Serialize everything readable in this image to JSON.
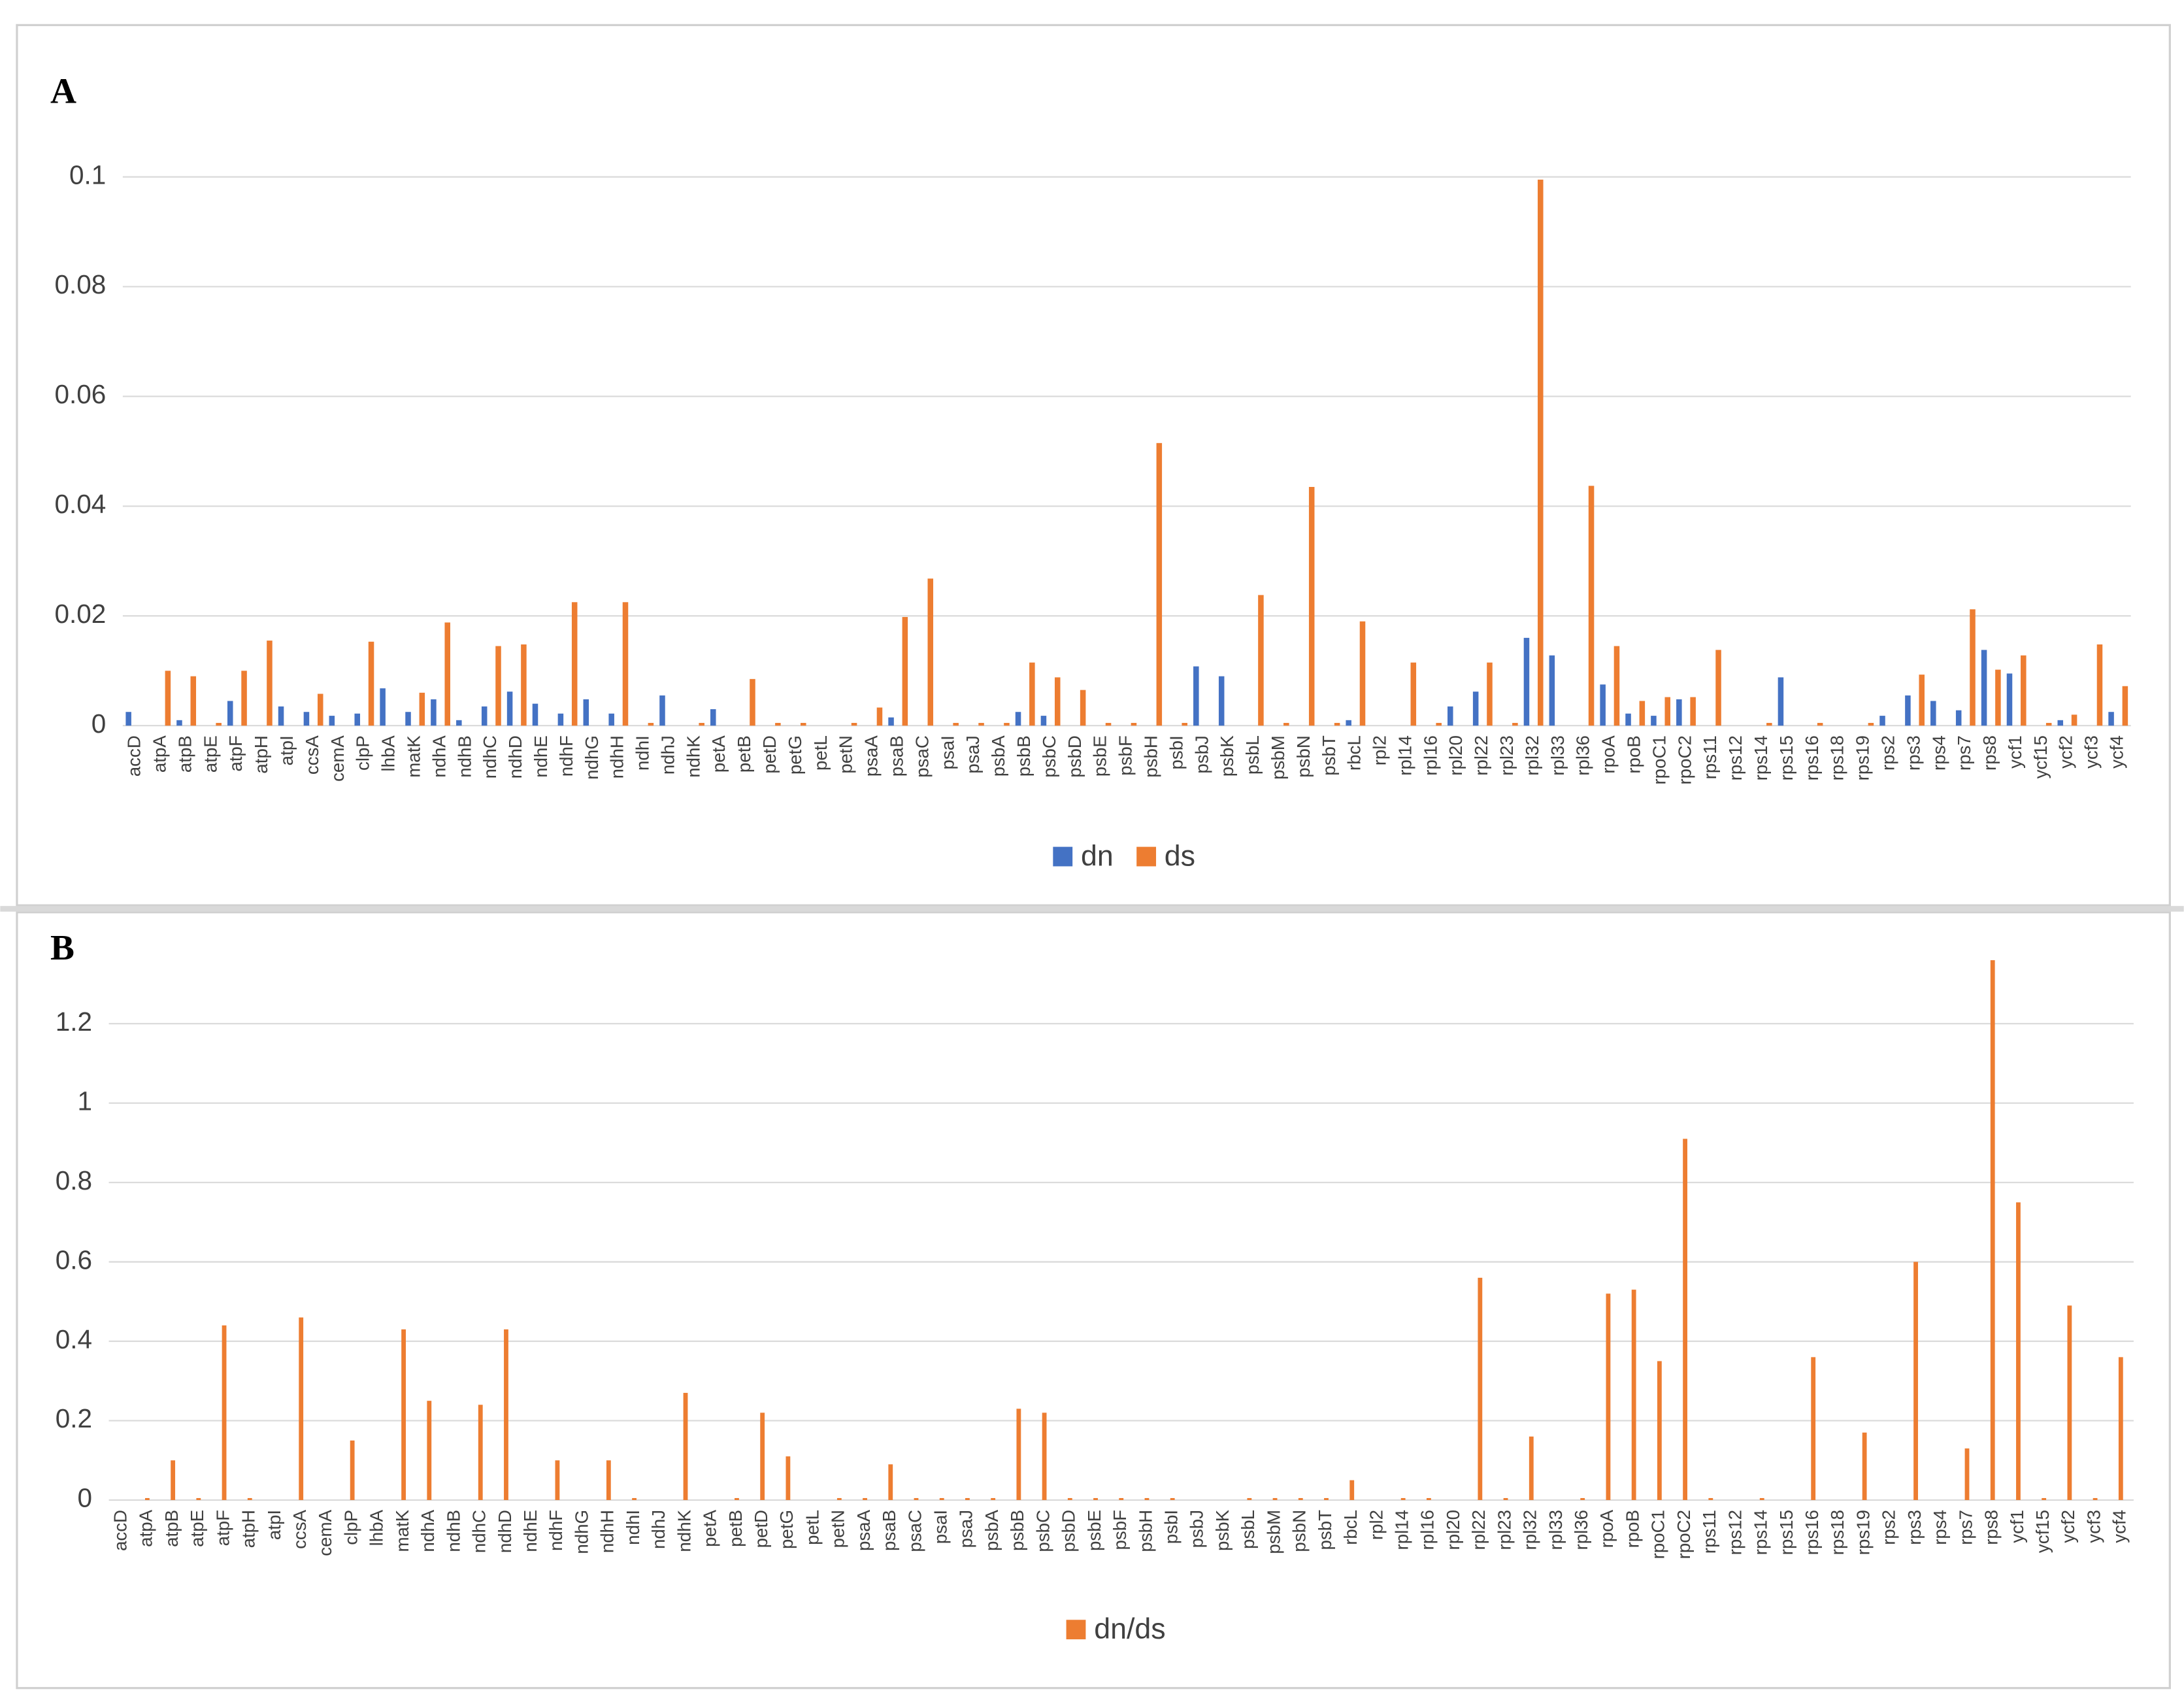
{
  "chart_data": [
    {
      "type": "bar",
      "panel_label": "A",
      "categories": [
        "accD",
        "atpA",
        "atpB",
        "atpE",
        "atpF",
        "atpH",
        "atpI",
        "ccsA",
        "cemA",
        "clpP",
        "lhbA",
        "matK",
        "ndhA",
        "ndhB",
        "ndhC",
        "ndhD",
        "ndhE",
        "ndhF",
        "ndhG",
        "ndhH",
        "ndhI",
        "ndhJ",
        "ndhK",
        "petA",
        "petB",
        "petD",
        "petG",
        "petL",
        "petN",
        "psaA",
        "psaB",
        "psaC",
        "psaI",
        "psaJ",
        "psbA",
        "psbB",
        "psbC",
        "psbD",
        "psbE",
        "psbF",
        "psbH",
        "psbI",
        "psbJ",
        "psbK",
        "psbL",
        "psbM",
        "psbN",
        "psbT",
        "rbcL",
        "rpl2",
        "rpl14",
        "rpl16",
        "rpl20",
        "rpl22",
        "rpl23",
        "rpl32",
        "rpl33",
        "rpl36",
        "rpoA",
        "rpoB",
        "rpoC1",
        "rpoC2",
        "rps11",
        "rps12",
        "rps14",
        "rps15",
        "rps16",
        "rps18",
        "rps19",
        "rps2",
        "rps3",
        "rps4",
        "rps7",
        "rps8",
        "ycf1",
        "ycf15",
        "ycf2",
        "ycf3",
        "ycf4"
      ],
      "series": [
        {
          "name": "dn",
          "color": "#4472c4",
          "values": [
            0.0025,
            0,
            0.001,
            0,
            0.0045,
            0,
            0.0035,
            0.0025,
            0.0018,
            0.0022,
            0.0068,
            0.0025,
            0.0048,
            0.001,
            0.0035,
            0.0062,
            0.004,
            0.0022,
            0.0048,
            0.0022,
            0,
            0.0055,
            0,
            0.003,
            0,
            0,
            0,
            0,
            0,
            0,
            0.0015,
            0,
            0,
            0,
            0,
            0.0025,
            0.0018,
            0,
            0,
            0,
            0,
            0,
            0.0108,
            0.009,
            0,
            0,
            0,
            0,
            0.001,
            0,
            0,
            0,
            0.0035,
            0.0062,
            0,
            0.016,
            0.0128,
            0,
            0.0075,
            0.0022,
            0.0018,
            0.0048,
            0,
            0,
            0,
            0.0088,
            0,
            0,
            0,
            0.0018,
            0.0055,
            0.0045,
            0.0028,
            0.0138,
            0.0095,
            0,
            0.001,
            0,
            0.0025
          ]
        },
        {
          "name": "ds",
          "color": "#ed7d31",
          "values": [
            0,
            0.01,
            0.009,
            0.0005,
            0.01,
            0.0155,
            0,
            0.0058,
            0,
            0.0153,
            0,
            0.006,
            0.0188,
            0,
            0.0145,
            0.0148,
            0,
            0.0225,
            0,
            0.0225,
            0.0005,
            0,
            0.0005,
            0,
            0.0085,
            0.0005,
            0.0005,
            0,
            0.0005,
            0.0033,
            0.0198,
            0.0268,
            0.0005,
            0.0005,
            0.0005,
            0.0115,
            0.0088,
            0.0065,
            0.0005,
            0.0005,
            0.0515,
            0.0005,
            0,
            0,
            0.0238,
            0.0005,
            0.0435,
            0.0005,
            0.019,
            0,
            0.0115,
            0.0005,
            0,
            0.0115,
            0.0005,
            0.0995,
            0,
            0.0437,
            0.0145,
            0.0045,
            0.0052,
            0.0052,
            0.0138,
            0,
            0.0005,
            0,
            0.0005,
            0,
            0.0005,
            0,
            0.0093,
            0,
            0.0212,
            0.0102,
            0.0128,
            0.0005,
            0.002,
            0.0148,
            0.0072
          ]
        }
      ],
      "ylim": [
        0,
        0.1
      ],
      "yticks": [
        0,
        0.02,
        0.04,
        0.06,
        0.08,
        0.1
      ],
      "grid": true,
      "legend": "bottom"
    },
    {
      "type": "bar",
      "panel_label": "B",
      "categories": [
        "accD",
        "atpA",
        "atpB",
        "atpE",
        "atpF",
        "atpH",
        "atpI",
        "ccsA",
        "cemA",
        "clpP",
        "lhbA",
        "matK",
        "ndhA",
        "ndhB",
        "ndhC",
        "ndhD",
        "ndhE",
        "ndhF",
        "ndhG",
        "ndhH",
        "ndhI",
        "ndhJ",
        "ndhK",
        "petA",
        "petB",
        "petD",
        "petG",
        "petL",
        "petN",
        "psaA",
        "psaB",
        "psaC",
        "psaI",
        "psaJ",
        "psbA",
        "psbB",
        "psbC",
        "psbD",
        "psbE",
        "psbF",
        "psbH",
        "psbI",
        "psbJ",
        "psbK",
        "psbL",
        "psbM",
        "psbN",
        "psbT",
        "rbcL",
        "rpl2",
        "rpl14",
        "rpl16",
        "rpl20",
        "rpl22",
        "rpl23",
        "rpl32",
        "rpl33",
        "rpl36",
        "rpoA",
        "rpoB",
        "rpoC1",
        "rpoC2",
        "rps11",
        "rps12",
        "rps14",
        "rps15",
        "rps16",
        "rps18",
        "rps19",
        "rps2",
        "rps3",
        "rps4",
        "rps7",
        "rps8",
        "ycf1",
        "ycf15",
        "ycf2",
        "ycf3",
        "ycf4"
      ],
      "series": [
        {
          "name": "dn/ds",
          "color": "#ed7d31",
          "values": [
            0,
            0.005,
            0.1,
            0.005,
            0.44,
            0.005,
            0,
            0.46,
            0,
            0.15,
            0,
            0.43,
            0.25,
            0,
            0.24,
            0.43,
            0,
            0.1,
            0,
            0.1,
            0.005,
            0,
            0.27,
            0,
            0.005,
            0.22,
            0.11,
            0,
            0.005,
            0.005,
            0.09,
            0.005,
            0.005,
            0.005,
            0.005,
            0.23,
            0.22,
            0.005,
            0.005,
            0.005,
            0.005,
            0.005,
            0,
            0,
            0.005,
            0.005,
            0.005,
            0.005,
            0.05,
            0,
            0.005,
            0.005,
            0,
            0.56,
            0.005,
            0.16,
            0,
            0.005,
            0.52,
            0.53,
            0.35,
            0.91,
            0.005,
            0,
            0.005,
            0,
            0.36,
            0,
            0.17,
            0,
            0.6,
            0,
            0.13,
            1.36,
            0.75,
            0.005,
            0.49,
            0.005,
            0.36
          ]
        }
      ],
      "ylim": [
        0,
        1.4
      ],
      "yticks": [
        0,
        0.2,
        0.4,
        0.6,
        0.8,
        1,
        1.2
      ],
      "grid": true,
      "legend": "bottom"
    }
  ]
}
